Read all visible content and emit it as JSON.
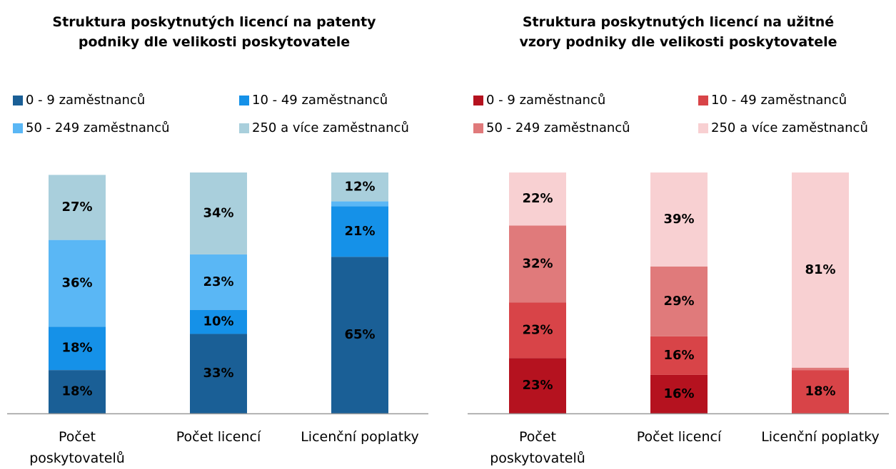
{
  "chart_data": [
    {
      "type": "bar",
      "stacked": true,
      "title": "Struktura poskytnutých licencí na patenty podniky dle velikosti poskytovatele",
      "categories": [
        "Počet poskytovatelů",
        "Počet licencí",
        "Licenční poplatky"
      ],
      "ylim": [
        0,
        100
      ],
      "series": [
        {
          "name": "0 - 9 zaměstnanců",
          "color": "#1a5f96",
          "values": [
            18,
            33,
            65
          ],
          "value_labels": [
            "18%",
            "33%",
            "65%"
          ]
        },
        {
          "name": "10 - 49 zaměstnanců",
          "color": "#1591e8",
          "values": [
            18,
            10,
            21
          ],
          "value_labels": [
            "18%",
            "10%",
            "21%"
          ]
        },
        {
          "name": "50 - 249 zaměstnanců",
          "color": "#5ab7f5",
          "values": [
            36,
            23,
            2
          ],
          "value_labels": [
            "36%",
            "23%",
            null
          ]
        },
        {
          "name": "250 a více zaměstnanců",
          "color": "#a9cfdc",
          "values": [
            27,
            34,
            12
          ],
          "value_labels": [
            "27%",
            "34%",
            "12%"
          ]
        }
      ]
    },
    {
      "type": "bar",
      "stacked": true,
      "title": "Struktura poskytnutých licencí na užitné vzory podniky dle velikosti poskytovatele",
      "categories": [
        "Počet poskytovatelů",
        "Počet licencí",
        "Licenční poplatky"
      ],
      "ylim": [
        0,
        100
      ],
      "series": [
        {
          "name": "0 - 9 zaměstnanců",
          "color": "#b5121f",
          "values": [
            23,
            16,
            0
          ],
          "value_labels": [
            "23%",
            "16%",
            null
          ]
        },
        {
          "name": "10 - 49 zaměstnanců",
          "color": "#d84448",
          "values": [
            23,
            16,
            18
          ],
          "value_labels": [
            "23%",
            "16%",
            "18%"
          ]
        },
        {
          "name": "50 - 249 zaměstnanců",
          "color": "#e07a7b",
          "values": [
            32,
            29,
            1
          ],
          "value_labels": [
            "32%",
            "29%",
            null
          ]
        },
        {
          "name": "250 a více zaměstnanců",
          "color": "#f8d0d2",
          "values": [
            22,
            39,
            81
          ],
          "value_labels": [
            "22%",
            "39%",
            "81%"
          ]
        }
      ]
    }
  ]
}
